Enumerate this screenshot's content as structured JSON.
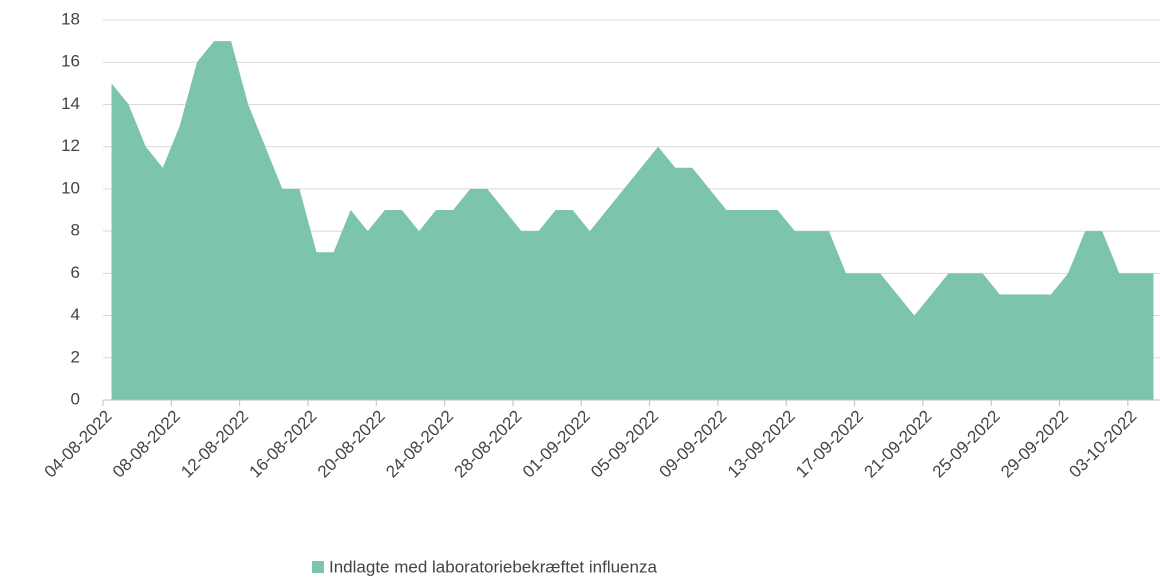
{
  "chart_data": {
    "type": "area",
    "categories": [
      "04-08-2022",
      null,
      null,
      null,
      "08-08-2022",
      null,
      null,
      null,
      "12-08-2022",
      null,
      null,
      null,
      "16-08-2022",
      null,
      null,
      null,
      "20-08-2022",
      null,
      null,
      null,
      "24-08-2022",
      null,
      null,
      null,
      "28-08-2022",
      null,
      null,
      null,
      "01-09-2022",
      null,
      null,
      null,
      "05-09-2022",
      null,
      null,
      null,
      "09-09-2022",
      null,
      null,
      null,
      "13-09-2022",
      null,
      null,
      null,
      "17-09-2022",
      null,
      null,
      null,
      "21-09-2022",
      null,
      null,
      null,
      "25-09-2022",
      null,
      null,
      null,
      "29-09-2022",
      null,
      null,
      null,
      "03-10-2022",
      null
    ],
    "series": [
      {
        "name": "Indlagte med laboratoriebekræftet influenza",
        "color": "#7cc4ac",
        "values": [
          15,
          14,
          12,
          11,
          13,
          16,
          17,
          17,
          14,
          12,
          10,
          10,
          7,
          7,
          9,
          8,
          9,
          9,
          8,
          9,
          9,
          10,
          10,
          9,
          8,
          8,
          9,
          9,
          8,
          9,
          10,
          11,
          12,
          11,
          11,
          10,
          9,
          9,
          9,
          9,
          8,
          8,
          8,
          6,
          6,
          6,
          5,
          4,
          5,
          6,
          6,
          6,
          5,
          5,
          5,
          5,
          6,
          8,
          8,
          6,
          6,
          6
        ]
      }
    ],
    "ylim": [
      0,
      18
    ],
    "yticks": [
      0,
      2,
      4,
      6,
      8,
      10,
      12,
      14,
      16,
      18
    ],
    "grid": true,
    "legend": "bottom"
  }
}
